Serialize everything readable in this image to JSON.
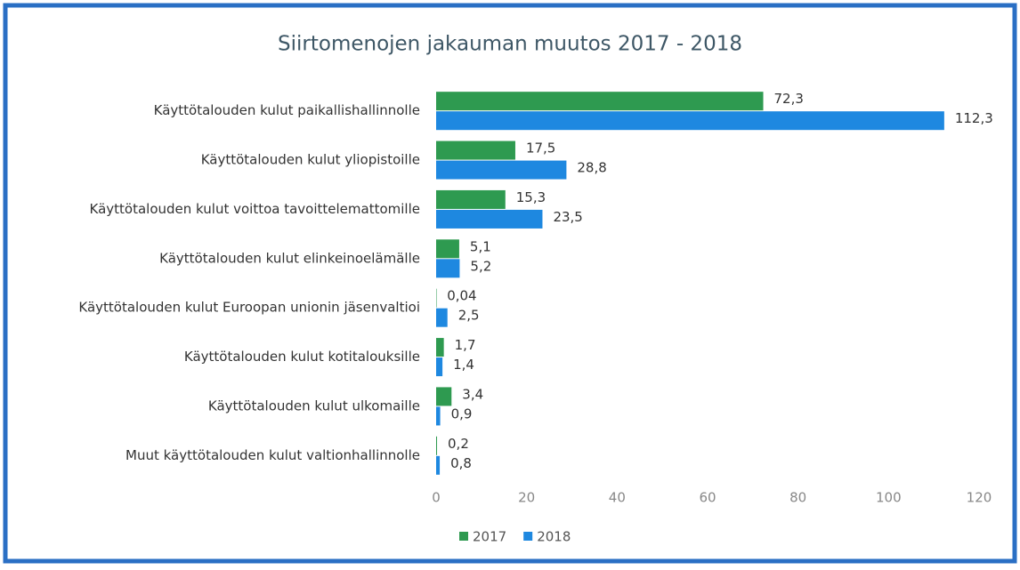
{
  "chart_data": {
    "type": "bar",
    "orientation": "horizontal",
    "title": "Siirtomenojen jakauman muutos 2017 - 2018",
    "categories": [
      "Käyttötalouden kulut paikallishallinnolle",
      "Käyttötalouden kulut yliopistoille",
      "Käyttötalouden kulut voittoa tavoittelemattomille",
      "Käyttötalouden kulut elinkeinoelämälle",
      "Käyttötalouden kulut Euroopan unionin jäsenvaltioi",
      "Käyttötalouden kulut kotitalouksille",
      "Käyttötalouden kulut ulkomaille",
      "Muut käyttötalouden kulut valtionhallinnolle"
    ],
    "series": [
      {
        "name": "2017",
        "color": "#2e9a50",
        "values": [
          72.3,
          17.5,
          15.3,
          5.1,
          0.04,
          1.7,
          3.4,
          0.2
        ],
        "value_labels": [
          "72,3",
          "17,5",
          "15,3",
          "5,1",
          "0,04",
          "1,7",
          "3,4",
          "0,2"
        ]
      },
      {
        "name": "2018",
        "color": "#1e88e0",
        "values": [
          112.3,
          28.8,
          23.5,
          5.2,
          2.5,
          1.4,
          0.9,
          0.8
        ],
        "value_labels": [
          "112,3",
          "28,8",
          "23,5",
          "5,2",
          "2,5",
          "1,4",
          "0,9",
          "0,8"
        ]
      }
    ],
    "xlim": [
      0,
      120
    ],
    "xticks": [
      0,
      20,
      40,
      60,
      80,
      100,
      120
    ],
    "grid": false,
    "legend": "bottom"
  }
}
